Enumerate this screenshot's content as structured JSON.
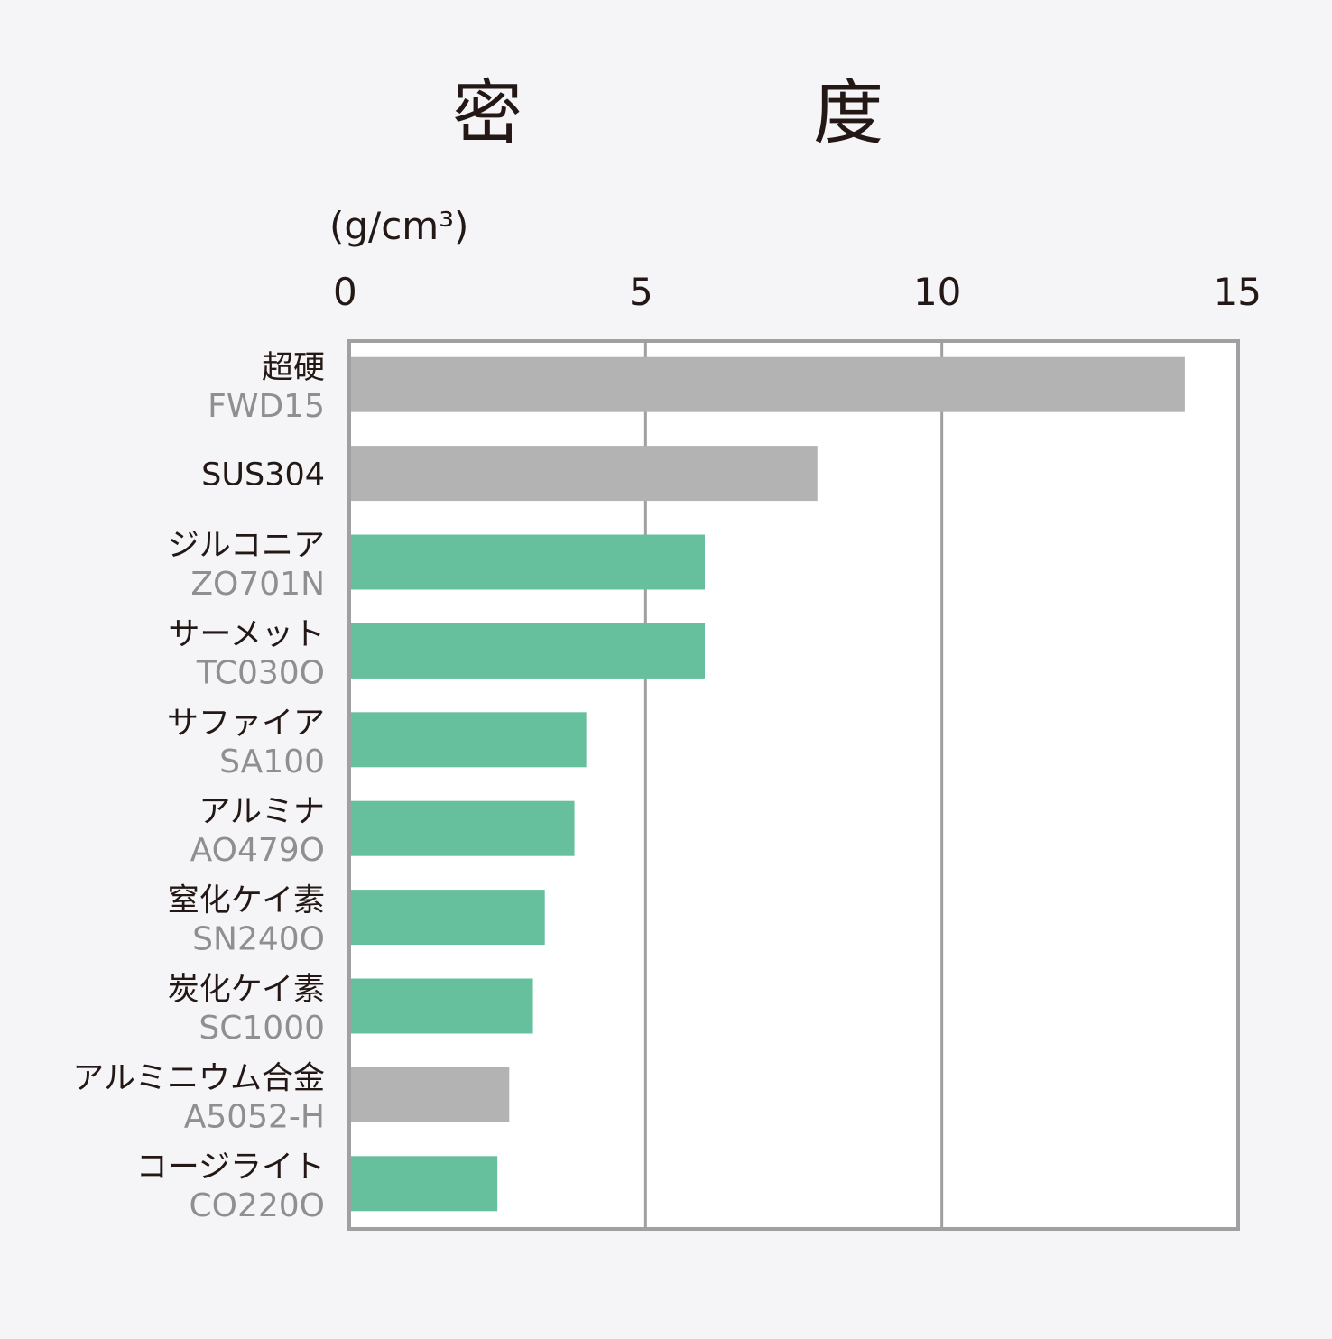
{
  "chart_data": {
    "type": "bar",
    "orientation": "horizontal",
    "title_chars": [
      "密",
      "度"
    ],
    "unit_label": "(g/cm³)",
    "xlim": [
      0,
      15
    ],
    "xticks": [
      "0",
      "5",
      "10",
      "15"
    ],
    "grid": true,
    "categories": [
      {
        "name": "超硬",
        "grade": "FWD15",
        "value": 14.1,
        "group": "gray"
      },
      {
        "name": "SUS304",
        "grade": "",
        "value": 7.9,
        "group": "gray"
      },
      {
        "name": "ジルコニア",
        "grade": "ZO701N",
        "value": 6.0,
        "group": "green"
      },
      {
        "name": "サーメット",
        "grade": "TC030O",
        "value": 6.0,
        "group": "green"
      },
      {
        "name": "サファイア",
        "grade": "SA100",
        "value": 4.0,
        "group": "green"
      },
      {
        "name": "アルミナ",
        "grade": "AO479O",
        "value": 3.8,
        "group": "green"
      },
      {
        "name": "窒化ケイ素",
        "grade": "SN240O",
        "value": 3.3,
        "group": "green"
      },
      {
        "name": "炭化ケイ素",
        "grade": "SC1000",
        "value": 3.1,
        "group": "green"
      },
      {
        "name": "アルミニウム合金",
        "grade": "A5052-H",
        "value": 2.7,
        "group": "gray"
      },
      {
        "name": "コージライト",
        "grade": "CO220O",
        "value": 2.5,
        "group": "green"
      }
    ],
    "colors": {
      "green": "#66c09d",
      "gray": "#b3b3b4",
      "frame": "#a0a0a0",
      "plot_bg": "#ffffff"
    }
  }
}
